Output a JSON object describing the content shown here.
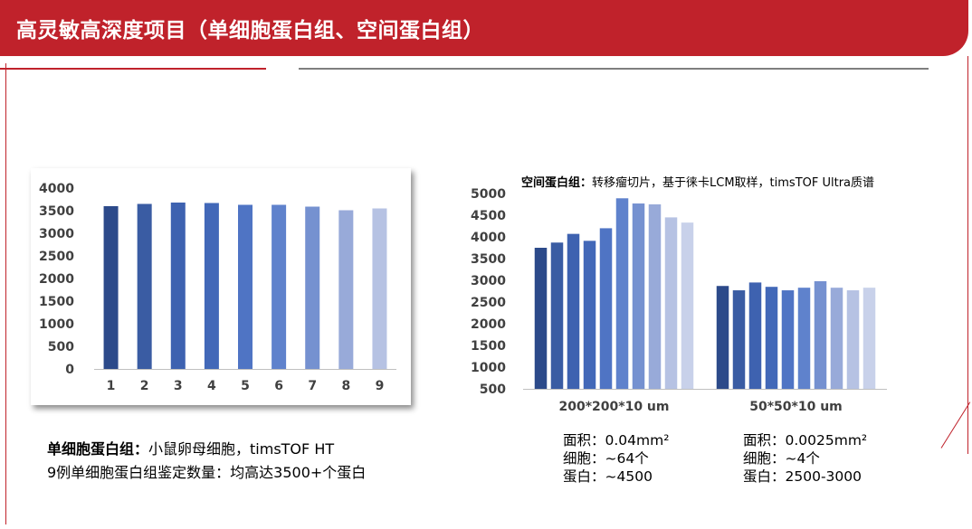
{
  "header": {
    "title": "高灵敏高深度项目（单细胞蛋白组、空间蛋白组）"
  },
  "colors": {
    "brand_red": "#c0222b",
    "divider_gray": "#7f7f7f",
    "bar_palette": [
      "#2c4a8a",
      "#3a5ca3",
      "#3e62b0",
      "#4268b8",
      "#4f74c4",
      "#5f82cc",
      "#7591d0",
      "#98aad9",
      "#b6c2e3",
      "#c8d1ea"
    ]
  },
  "chart_data": [
    {
      "type": "bar",
      "categories": [
        "1",
        "2",
        "3",
        "4",
        "5",
        "6",
        "7",
        "8",
        "9"
      ],
      "values": [
        3600,
        3650,
        3680,
        3670,
        3630,
        3630,
        3590,
        3510,
        3550
      ],
      "ylim": [
        0,
        4000
      ],
      "yticks": [
        "0",
        "500",
        "1000",
        "1500",
        "2000",
        "2500",
        "3000",
        "3500",
        "4000"
      ],
      "title": "",
      "xlabel": "",
      "ylabel": "",
      "grid": false
    },
    {
      "type": "bar",
      "title_bold": "空间蛋白组：",
      "title_rest": "转移瘤切片，基于徕卡LCM取样，timsTOF Ultra质谱",
      "groups": [
        {
          "label": "200*200*10 um",
          "values": [
            3750,
            3870,
            4070,
            3910,
            4200,
            4890,
            4770,
            4750,
            4450,
            4330
          ]
        },
        {
          "label": "50*50*10 um",
          "values": [
            2870,
            2770,
            2950,
            2850,
            2770,
            2830,
            2980,
            2830,
            2770,
            2830
          ]
        }
      ],
      "ylim": [
        500,
        5000
      ],
      "yticks": [
        "500",
        "1000",
        "1500",
        "2000",
        "2500",
        "3000",
        "3500",
        "4000",
        "4500",
        "5000"
      ],
      "grid": false
    }
  ],
  "note_left": {
    "line1_bold": "单细胞蛋白组：",
    "line1_rest": "小鼠卵母细胞，timsTOF HT",
    "line2": "9例单细胞蛋白组鉴定数量：均高达3500+个蛋白"
  },
  "spec_200": {
    "area": "面积：0.04mm²",
    "cells": "细胞：~64个",
    "proteins": "蛋白：~4500"
  },
  "spec_50": {
    "area": "面积：0.0025mm²",
    "cells": "细胞：~4个",
    "proteins": "蛋白：2500-3000"
  }
}
